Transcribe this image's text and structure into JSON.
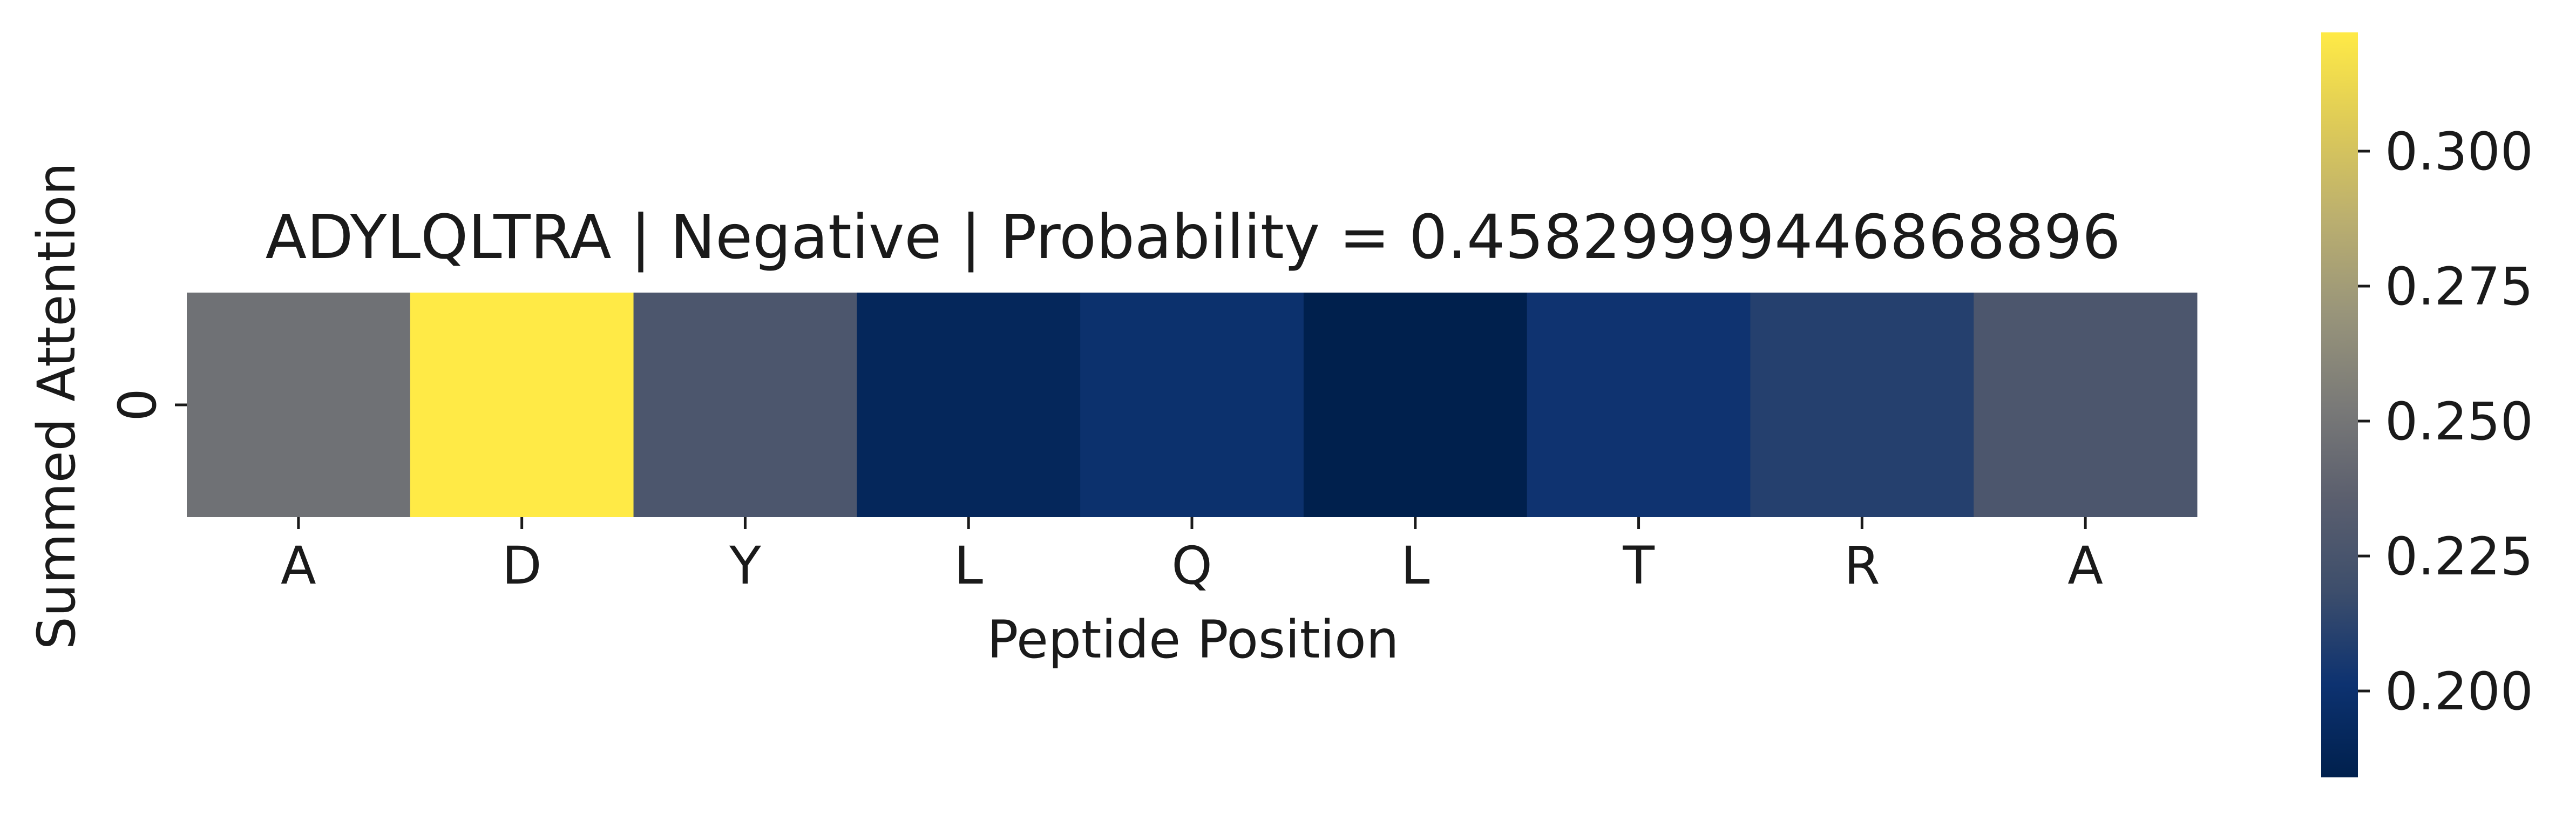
{
  "chart_data": {
    "type": "heatmap",
    "title": "ADYLQLTRA | Negative | Probability = 0.45829999446868896",
    "xlabel": "Peptide Position",
    "ylabel": "Summed Attention",
    "x_categories": [
      "A",
      "D",
      "Y",
      "L",
      "Q",
      "L",
      "T",
      "R",
      "A"
    ],
    "y_categories": [
      "0"
    ],
    "values": [
      [
        0.247,
        0.322,
        0.227,
        0.191,
        0.2,
        0.184,
        0.202,
        0.21,
        0.227
      ]
    ],
    "colormap": "cividis",
    "vmin": 0.184,
    "vmax": 0.322,
    "colorbar_ticks": [
      0.2,
      0.225,
      0.25,
      0.275,
      0.3
    ],
    "colorbar_tick_labels": [
      "0.200",
      "0.225",
      "0.250",
      "0.275",
      "0.300"
    ]
  }
}
